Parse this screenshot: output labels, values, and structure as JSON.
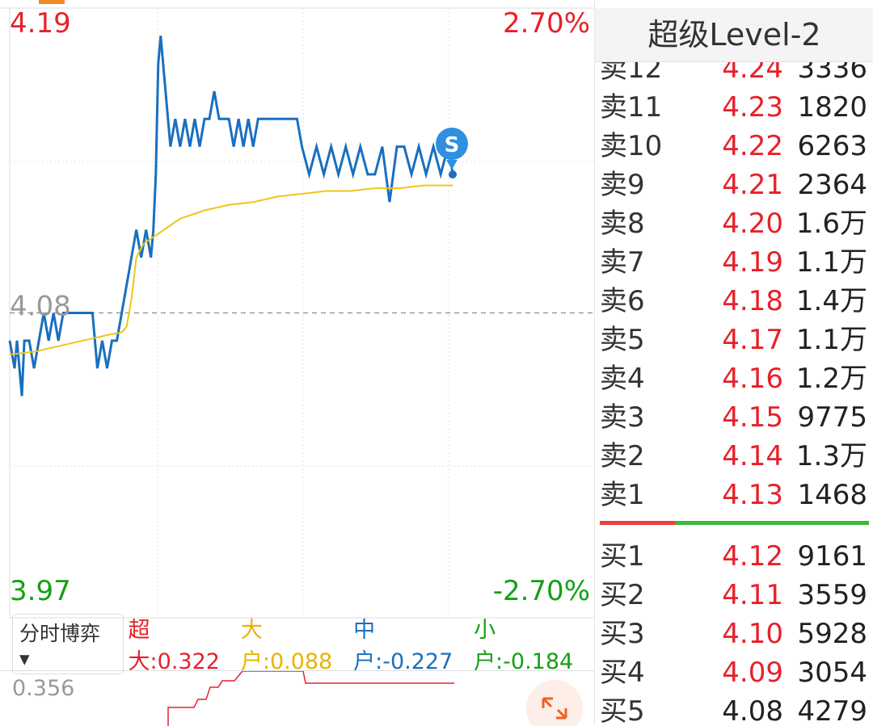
{
  "price_chart": {
    "type": "line",
    "xlim": [
      0,
      240
    ],
    "ylim": [
      3.97,
      4.19
    ],
    "yticks": [
      4.19,
      4.08,
      3.97
    ],
    "base": 4.08,
    "y2lim": [
      -2.7,
      2.7
    ],
    "y2ticks": [
      {
        "value": 2.7,
        "label": "2.70%"
      },
      {
        "value": -2.7,
        "label": "-2.70%"
      }
    ],
    "up_color": "#e8202a",
    "down_color": "#14a014",
    "base_color": "#999999",
    "series": [
      {
        "color": "#1a6fbf",
        "x": [
          0,
          2,
          3,
          5,
          6,
          8,
          10,
          12,
          14,
          16,
          18,
          20,
          22,
          24,
          26,
          28,
          30,
          32,
          34,
          36,
          38,
          40,
          42,
          44,
          46,
          48,
          50,
          52,
          54,
          56,
          58,
          59,
          60,
          61,
          62,
          64,
          66,
          68,
          70,
          72,
          74,
          76,
          78,
          80,
          82,
          84,
          86,
          88,
          90,
          92,
          94,
          96,
          98,
          100,
          102,
          104,
          106,
          108,
          110,
          112,
          114,
          116,
          118,
          120,
          123,
          126,
          129,
          132,
          135,
          138,
          141,
          144,
          147,
          150,
          153,
          156,
          159,
          162,
          165,
          168,
          171,
          174,
          177,
          180,
          182
        ],
        "values": [
          4.07,
          4.06,
          4.07,
          4.05,
          4.07,
          4.07,
          4.06,
          4.07,
          4.08,
          4.07,
          4.08,
          4.07,
          4.08,
          4.08,
          4.08,
          4.08,
          4.08,
          4.08,
          4.08,
          4.06,
          4.07,
          4.06,
          4.07,
          4.07,
          4.08,
          4.09,
          4.1,
          4.11,
          4.1,
          4.11,
          4.1,
          4.11,
          4.13,
          4.17,
          4.18,
          4.16,
          4.14,
          4.15,
          4.14,
          4.15,
          4.14,
          4.15,
          4.14,
          4.15,
          4.15,
          4.16,
          4.15,
          4.15,
          4.15,
          4.14,
          4.15,
          4.14,
          4.15,
          4.14,
          4.15,
          4.15,
          4.15,
          4.15,
          4.15,
          4.15,
          4.15,
          4.15,
          4.15,
          4.14,
          4.13,
          4.14,
          4.13,
          4.14,
          4.13,
          4.14,
          4.13,
          4.14,
          4.13,
          4.13,
          4.14,
          4.12,
          4.14,
          4.14,
          4.13,
          4.14,
          4.13,
          4.14,
          4.13,
          4.14,
          4.13
        ]
      },
      {
        "color": "#f0c419",
        "x": [
          0,
          10,
          20,
          30,
          40,
          46,
          48,
          50,
          52,
          55,
          60,
          65,
          70,
          80,
          90,
          100,
          110,
          120,
          130,
          140,
          150,
          160,
          170,
          182
        ],
        "values": [
          4.065,
          4.066,
          4.068,
          4.07,
          4.072,
          4.073,
          4.075,
          4.085,
          4.1,
          4.105,
          4.108,
          4.111,
          4.114,
          4.117,
          4.119,
          4.12,
          4.122,
          4.123,
          4.124,
          4.124,
          4.125,
          4.125,
          4.126,
          4.126
        ]
      }
    ]
  },
  "indicator": {
    "mode": "分时博弈",
    "items": [
      {
        "label": "超大:",
        "value": "0.322",
        "color": "#e8202a"
      },
      {
        "label": "大户:",
        "value": "0.088",
        "color": "#e6b400"
      },
      {
        "label": "中户:",
        "value": "-0.227",
        "color": "#1a6fbf"
      },
      {
        "label": "小户:",
        "value": "-0.184",
        "color": "#14a014"
      }
    ]
  },
  "lower_chart": {
    "label": "0.356"
  },
  "order_book": {
    "title": "超级Level-2",
    "base": 4.08,
    "up_color": "#e8202a",
    "flat_color": "#222222",
    "bar_colors": [
      "#e84040",
      "#3cb83c"
    ],
    "asks": [
      {
        "label": "卖12",
        "price": "4.24",
        "volume": "3336"
      },
      {
        "label": "卖11",
        "price": "4.23",
        "volume": "1820"
      },
      {
        "label": "卖10",
        "price": "4.22",
        "volume": "6263"
      },
      {
        "label": "卖9",
        "price": "4.21",
        "volume": "2364"
      },
      {
        "label": "卖8",
        "price": "4.20",
        "volume": "1.6万"
      },
      {
        "label": "卖7",
        "price": "4.19",
        "volume": "1.1万"
      },
      {
        "label": "卖6",
        "price": "4.18",
        "volume": "1.4万"
      },
      {
        "label": "卖5",
        "price": "4.17",
        "volume": "1.1万"
      },
      {
        "label": "卖4",
        "price": "4.16",
        "volume": "1.2万"
      },
      {
        "label": "卖3",
        "price": "4.15",
        "volume": "9775"
      },
      {
        "label": "卖2",
        "price": "4.14",
        "volume": "1.3万"
      },
      {
        "label": "卖1",
        "price": "4.13",
        "volume": "1468"
      }
    ],
    "bids": [
      {
        "label": "买1",
        "price": "4.12",
        "volume": "9161"
      },
      {
        "label": "买2",
        "price": "4.11",
        "volume": "3559"
      },
      {
        "label": "买3",
        "price": "4.10",
        "volume": "5928"
      },
      {
        "label": "买4",
        "price": "4.09",
        "volume": "3054"
      },
      {
        "label": "买5",
        "price": "4.08",
        "volume": "4279"
      }
    ]
  }
}
